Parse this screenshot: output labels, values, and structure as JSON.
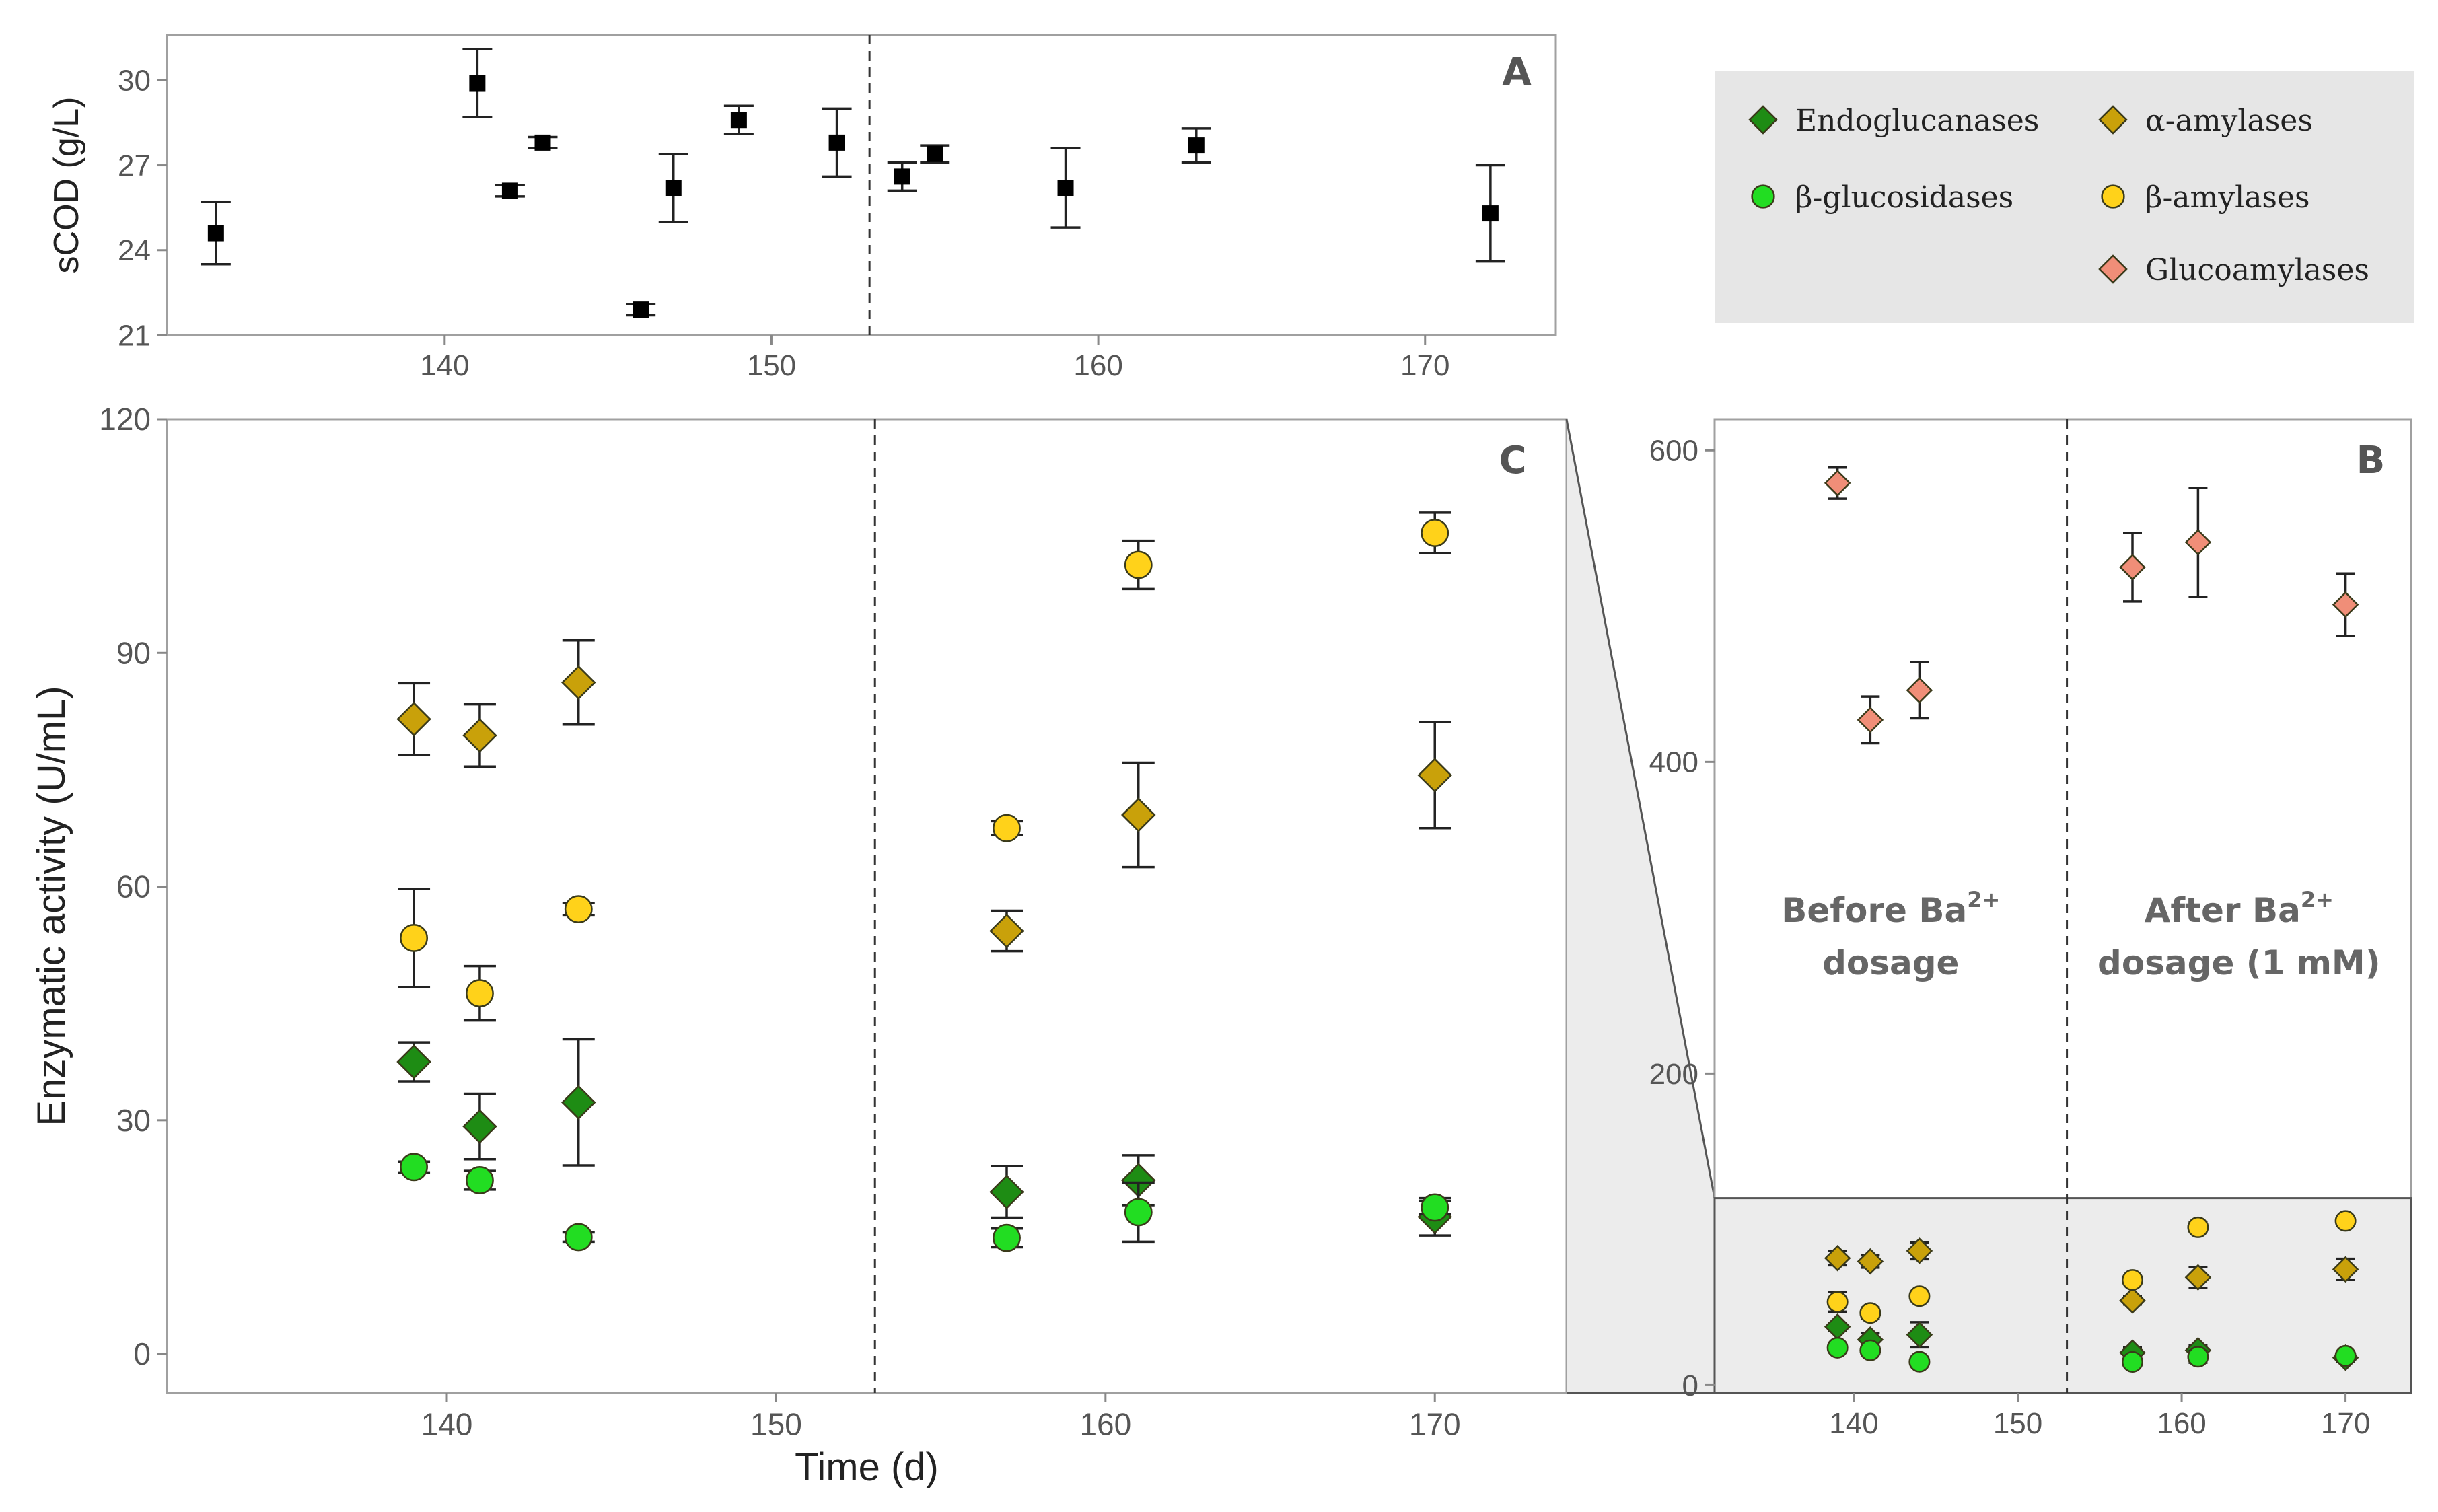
{
  "colors": {
    "endoglucanases": "#1e8c14",
    "b_glucosidases": "#22dd22",
    "a_amylases": "#c9a10a",
    "b_amylases": "#ffd21a",
    "glucoamylases": "#f08e78",
    "scod": "#000000",
    "legend_bg": "#e6e6e6",
    "zoom_bg": "#ececec"
  },
  "legend": {
    "items": [
      {
        "key": "endoglucanases",
        "label": "Endoglucanases",
        "marker": "diamond-marker-icon"
      },
      {
        "key": "b_glucosidases",
        "label": "β-glucosidases",
        "marker": "circle-marker-icon"
      },
      {
        "key": "a_amylases",
        "label": "α-amylases",
        "marker": "diamond-marker-icon"
      },
      {
        "key": "b_amylases",
        "label": "β-amylases",
        "marker": "circle-marker-icon"
      },
      {
        "key": "glucoamylases",
        "label": "Glucoamylases",
        "marker": "diamond-marker-icon"
      }
    ]
  },
  "chart_data": [
    {
      "panel": "A",
      "type": "scatter",
      "title": "",
      "xlabel": "",
      "ylabel": "sCOD (g/L)",
      "xlim": [
        131.5,
        174
      ],
      "ylim": [
        21,
        31.6
      ],
      "xticks": [
        140,
        150,
        160,
        170
      ],
      "yticks": [
        21,
        24,
        27,
        30
      ],
      "divider_x": 153,
      "series": [
        {
          "name": "sCOD",
          "marker": "square",
          "x": [
            133,
            141,
            142,
            143,
            146,
            147,
            149,
            152,
            154,
            155,
            159,
            163,
            172
          ],
          "y": [
            24.6,
            29.9,
            26.1,
            27.8,
            21.9,
            26.2,
            28.6,
            27.8,
            26.6,
            27.4,
            26.2,
            27.7,
            25.3
          ],
          "err": [
            1.1,
            1.2,
            0.2,
            0.2,
            0.2,
            1.2,
            0.5,
            1.2,
            0.5,
            0.3,
            1.4,
            0.6,
            1.7
          ]
        }
      ]
    },
    {
      "panel": "C",
      "type": "scatter",
      "title": "",
      "xlabel": "Time (d)",
      "ylabel": "Enzymatic activity (U/mL)",
      "xlim": [
        131.5,
        174
      ],
      "ylim": [
        -5,
        120
      ],
      "xticks": [
        140,
        150,
        160,
        170
      ],
      "yticks": [
        0,
        30,
        60,
        90,
        120
      ],
      "divider_x": 153,
      "series": [
        {
          "name": "Endoglucanases",
          "key": "endoglucanases",
          "marker": "diamond",
          "x": [
            139,
            141,
            144,
            157,
            161,
            170
          ],
          "y": [
            37.5,
            29.2,
            32.3,
            20.8,
            22.3,
            17.6
          ],
          "err": [
            2.5,
            4.2,
            8.1,
            3.3,
            3.2,
            2.4
          ]
        },
        {
          "name": "β-glucosidases",
          "key": "b_glucosidases",
          "marker": "circle",
          "x": [
            139,
            141,
            144,
            157,
            161,
            170
          ],
          "y": [
            24,
            22.3,
            15,
            14.9,
            18.2,
            18.8
          ],
          "err": [
            0.7,
            1.2,
            0.6,
            1.2,
            3.8,
            0.8
          ]
        },
        {
          "name": "α-amylases",
          "key": "a_amylases",
          "marker": "diamond",
          "x": [
            139,
            141,
            144,
            157,
            161,
            170
          ],
          "y": [
            81.5,
            79.4,
            86.2,
            54.3,
            69.2,
            74.3
          ],
          "err": [
            4.6,
            4.0,
            5.4,
            2.6,
            6.7,
            6.8
          ]
        },
        {
          "name": "β-amylases",
          "key": "b_amylases",
          "marker": "circle",
          "x": [
            139,
            141,
            144,
            157,
            161,
            170
          ],
          "y": [
            53.4,
            46.3,
            57.1,
            67.5,
            101.3,
            105.4
          ],
          "err": [
            6.3,
            3.5,
            0.8,
            0.9,
            3.1,
            2.6
          ]
        }
      ]
    },
    {
      "panel": "B",
      "type": "scatter",
      "title": "",
      "xlabel": "",
      "ylabel": "",
      "xlim": [
        131.5,
        174
      ],
      "ylim": [
        -5,
        620
      ],
      "xticks": [
        140,
        150,
        160,
        170
      ],
      "yticks": [
        0,
        200,
        400,
        600
      ],
      "divider_x": 153,
      "zoom_band": [
        -5,
        120
      ],
      "annotations": [
        {
          "line1_main": "Before Ba",
          "line1_sup": "2+",
          "line2": "dosage"
        },
        {
          "line1_main": "After Ba",
          "line1_sup": "2+",
          "line2": "dosage (1 mM)"
        }
      ],
      "series": [
        {
          "name": "Glucoamylases",
          "key": "glucoamylases",
          "marker": "diamond",
          "x": [
            139,
            141,
            144,
            157,
            161,
            170
          ],
          "y": [
            579,
            427,
            446,
            525,
            541,
            501
          ],
          "err": [
            10,
            15,
            18,
            22,
            35,
            20
          ]
        },
        {
          "name": "Endoglucanases",
          "key": "endoglucanases",
          "marker": "diamond",
          "x": [
            139,
            141,
            144,
            157,
            161,
            170
          ],
          "y": [
            37.5,
            29.2,
            32.3,
            20.8,
            22.3,
            17.6
          ],
          "err": [
            2.5,
            4.2,
            8.1,
            3.3,
            3.2,
            2.4
          ]
        },
        {
          "name": "β-glucosidases",
          "key": "b_glucosidases",
          "marker": "circle",
          "x": [
            139,
            141,
            144,
            157,
            161,
            170
          ],
          "y": [
            24,
            22.3,
            15,
            14.9,
            18.2,
            18.8
          ],
          "err": [
            0.7,
            1.2,
            0.6,
            1.2,
            3.8,
            0.8
          ]
        },
        {
          "name": "α-amylases",
          "key": "a_amylases",
          "marker": "diamond",
          "x": [
            139,
            141,
            144,
            157,
            161,
            170
          ],
          "y": [
            81.5,
            79.4,
            86.2,
            54.3,
            69.2,
            74.3
          ],
          "err": [
            4.6,
            4.0,
            5.4,
            2.6,
            6.7,
            6.8
          ]
        },
        {
          "name": "β-amylases",
          "key": "b_amylases",
          "marker": "circle",
          "x": [
            139,
            141,
            144,
            157,
            161,
            170
          ],
          "y": [
            53.4,
            46.3,
            57.1,
            67.5,
            101.3,
            105.4
          ],
          "err": [
            6.3,
            3.5,
            0.8,
            0.9,
            3.1,
            2.6
          ]
        }
      ]
    }
  ]
}
